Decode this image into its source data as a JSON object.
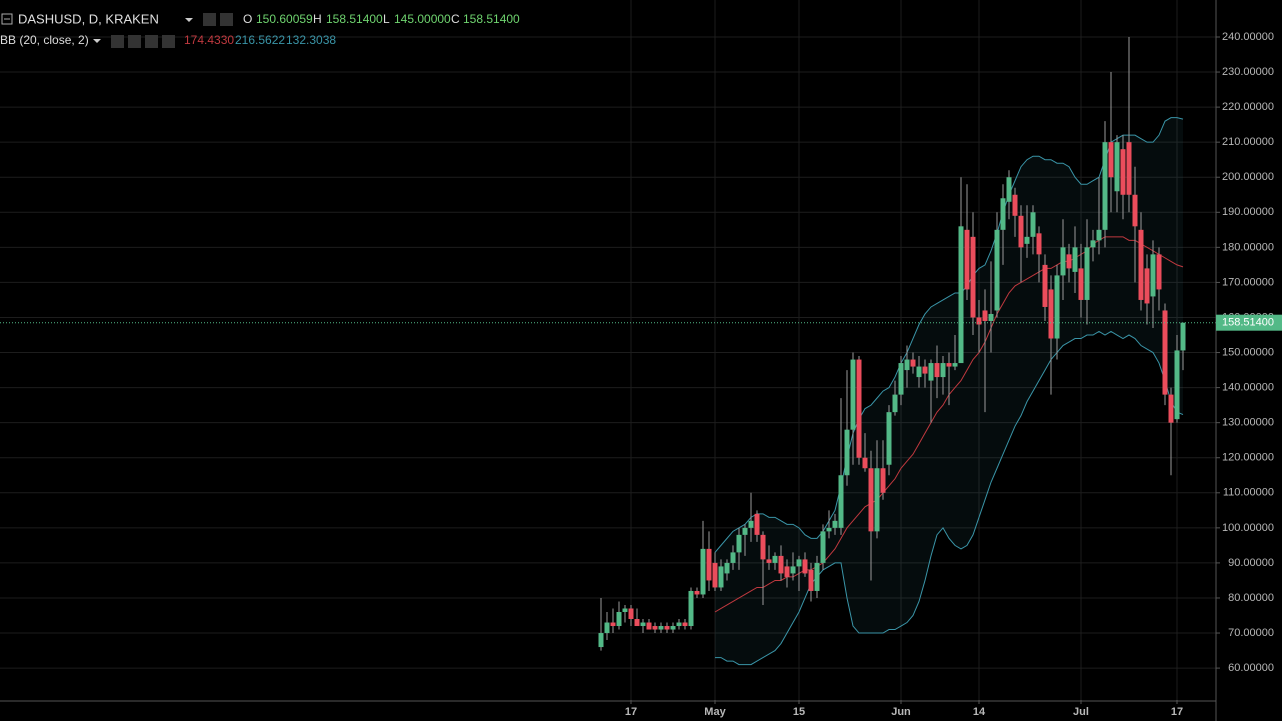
{
  "chart_data": {
    "type": "candlestick",
    "header": {
      "symbol": "DASHUSD, D, KRAKEN",
      "open_label": "O",
      "open": "150.60059",
      "high_label": "H",
      "high": "158.51400",
      "low_label": "L",
      "low": "145.00000",
      "close_label": "C",
      "close": "158.51400"
    },
    "categories": [
      null,
      null,
      null,
      null,
      null,
      "17",
      null,
      null,
      null,
      null,
      null,
      null,
      null,
      null,
      null,
      null,
      null,
      null,
      null,
      "May",
      null,
      null,
      null,
      null,
      null,
      null,
      null,
      null,
      null,
      null,
      null,
      null,
      null,
      "15",
      null,
      null,
      null,
      null,
      null,
      null,
      null,
      null,
      null,
      null,
      null,
      null,
      null,
      null,
      null,
      null,
      "Jun",
      null,
      null,
      null,
      null,
      null,
      null,
      null,
      null,
      null,
      null,
      null,
      null,
      "14",
      null,
      null,
      null,
      null,
      null,
      null,
      null,
      null,
      null,
      null,
      null,
      null,
      null,
      null,
      null,
      null,
      "Jul",
      null,
      null,
      null,
      null,
      null,
      null,
      null,
      null,
      null,
      null,
      null,
      null,
      null,
      null,
      null,
      "17",
      null
    ],
    "open": [
      66,
      70,
      73,
      72,
      76,
      77,
      74,
      72,
      73,
      72,
      71,
      72,
      71,
      72,
      73,
      72,
      82,
      81,
      94,
      90,
      83,
      87,
      90,
      93,
      98,
      100,
      104,
      98,
      91,
      90,
      92,
      89,
      87,
      89,
      91,
      88,
      82,
      90,
      99,
      100,
      100,
      115,
      128,
      148,
      120,
      117,
      99,
      117,
      118,
      133,
      138,
      145,
      148,
      143,
      146,
      142,
      147,
      143,
      147,
      146,
      147,
      185,
      183,
      160,
      162,
      159,
      162,
      185,
      193,
      195,
      189,
      181,
      183,
      184,
      175,
      168,
      154,
      172,
      178,
      173,
      174,
      165,
      180,
      182,
      185,
      210,
      196,
      208,
      210,
      195,
      185,
      174,
      166,
      178,
      162,
      138,
      131,
      150.60059
    ],
    "high": [
      80,
      76,
      77,
      79,
      78,
      78,
      77,
      74,
      74,
      73,
      73,
      73,
      73,
      74,
      74,
      83,
      83,
      102,
      99,
      93,
      91,
      91,
      95,
      100,
      101,
      110,
      105,
      99,
      95,
      93,
      95,
      91,
      93,
      92,
      93,
      90,
      92,
      101,
      105,
      104,
      137,
      145,
      150,
      149,
      127,
      122,
      125,
      125,
      135,
      142,
      149,
      152,
      150,
      149,
      148,
      148,
      152,
      149,
      150,
      155,
      200,
      198,
      190,
      165,
      168,
      176,
      190,
      198,
      202,
      197,
      192,
      192,
      192,
      186,
      178,
      172,
      175,
      188,
      181,
      186,
      181,
      188,
      185,
      200,
      216,
      230,
      212,
      212,
      240,
      203,
      190,
      178,
      182,
      180,
      164,
      140,
      155,
      158.514
    ],
    "low": [
      65,
      68,
      70,
      71,
      73,
      72,
      72,
      70,
      71,
      70,
      70,
      70,
      70,
      71,
      71,
      71,
      80,
      80,
      82,
      82,
      82,
      85,
      88,
      88,
      92,
      96,
      96,
      78,
      88,
      88,
      85,
      83,
      85,
      82,
      86,
      79,
      80,
      88,
      97,
      98,
      98,
      112,
      118,
      118,
      116,
      85,
      97,
      108,
      115,
      132,
      135,
      140,
      144,
      140,
      140,
      130,
      137,
      138,
      135,
      145,
      148,
      165,
      155,
      150,
      133,
      150,
      160,
      175,
      188,
      183,
      170,
      177,
      178,
      170,
      159,
      138,
      148,
      165,
      170,
      167,
      160,
      158,
      176,
      178,
      180,
      190,
      190,
      188,
      190,
      170,
      162,
      158,
      157,
      162,
      135,
      115,
      130,
      145
    ],
    "close": [
      70,
      73,
      72,
      76,
      77,
      74,
      72,
      73,
      71,
      71,
      72,
      71,
      72,
      73,
      72,
      82,
      81,
      94,
      85,
      83,
      89,
      90,
      93,
      98,
      100,
      102,
      98,
      91,
      90,
      92,
      87,
      86,
      89,
      91,
      87,
      82,
      90,
      99,
      100,
      102,
      115,
      128,
      148,
      120,
      117,
      99,
      117,
      110,
      133,
      138,
      147,
      148,
      146,
      146,
      144,
      147,
      143,
      147,
      146,
      147,
      186,
      168,
      160,
      158,
      159,
      161,
      185,
      194,
      200,
      189,
      180,
      183,
      190,
      178,
      163,
      154,
      172,
      180,
      174,
      180,
      165,
      180,
      182,
      185,
      210,
      200,
      210,
      195,
      195,
      186,
      165,
      164,
      178,
      168,
      138,
      130,
      150.6,
      158.514
    ],
    "up_color": "#53b987",
    "down_color": "#eb4d5c",
    "bollinger": {
      "label": "BB (20, close, 2)",
      "middle_readout": "174.4330",
      "upper_readout": "216.5622",
      "lower_readout": "132.3038",
      "middle_color": "#c0393f",
      "band_color": "#3a95a8",
      "middle": [
        null,
        null,
        null,
        null,
        null,
        null,
        null,
        null,
        null,
        null,
        null,
        null,
        null,
        null,
        null,
        null,
        null,
        null,
        null,
        76,
        77,
        78,
        79,
        80,
        81,
        82,
        83,
        83,
        84,
        85,
        85,
        86,
        86,
        87,
        88,
        88,
        89,
        90,
        92,
        94,
        97,
        100,
        102,
        104,
        106,
        107,
        108,
        110,
        112,
        114,
        117,
        119,
        121,
        124,
        127,
        130,
        133,
        135,
        138,
        140,
        142,
        145,
        148,
        150,
        153,
        157,
        161,
        164,
        167,
        169,
        170,
        171,
        172,
        173,
        174,
        174,
        175,
        176,
        176,
        177,
        178,
        179,
        181,
        182,
        183,
        183,
        183,
        183,
        182,
        182,
        181,
        180,
        179,
        178,
        177,
        176,
        175,
        174.433
      ],
      "upper": [
        null,
        null,
        null,
        null,
        null,
        null,
        null,
        null,
        null,
        null,
        null,
        null,
        null,
        null,
        null,
        null,
        null,
        null,
        null,
        93,
        95,
        97,
        99,
        100,
        101,
        103,
        104,
        104,
        103,
        103,
        102,
        101,
        101,
        100,
        98,
        97,
        97,
        99,
        102,
        105,
        112,
        120,
        127,
        131,
        134,
        135,
        137,
        139,
        140,
        143,
        147,
        150,
        154,
        158,
        161,
        163,
        164,
        165,
        166,
        167,
        167,
        169,
        172,
        174,
        175,
        179,
        184,
        190,
        195,
        199,
        203,
        205,
        206,
        206,
        205,
        205,
        204,
        204,
        203,
        200,
        198,
        198,
        199,
        200,
        205,
        210,
        211,
        212,
        212,
        212,
        211,
        210,
        210,
        212,
        216,
        217,
        217,
        216.5622
      ],
      "lower": [
        null,
        null,
        null,
        null,
        null,
        null,
        null,
        null,
        null,
        null,
        null,
        null,
        null,
        null,
        null,
        null,
        null,
        null,
        null,
        63,
        63,
        62,
        62,
        61,
        61,
        61,
        62,
        63,
        64,
        65,
        67,
        70,
        73,
        76,
        80,
        84,
        86,
        88,
        89,
        90,
        90,
        80,
        72,
        70,
        70,
        70,
        70,
        70,
        71,
        71,
        72,
        73,
        75,
        79,
        85,
        92,
        98,
        100,
        97,
        95,
        94,
        95,
        98,
        103,
        108,
        113,
        117,
        121,
        125,
        129,
        132,
        136,
        139,
        142,
        145,
        148,
        150,
        152,
        153,
        154,
        154,
        155,
        155,
        156,
        155,
        156,
        155,
        154,
        155,
        154,
        152,
        151,
        150,
        147,
        142,
        136,
        133,
        132.3038
      ]
    },
    "last_price": 158.514,
    "last_price_color": "#53b987",
    "ylim": [
      50.9,
      250.55
    ],
    "yticks": [
      {
        "value": 60,
        "label": "60.00000"
      },
      {
        "value": 70,
        "label": "70.00000"
      },
      {
        "value": 80,
        "label": "80.00000"
      },
      {
        "value": 90,
        "label": "90.00000"
      },
      {
        "value": 100,
        "label": "100.00000"
      },
      {
        "value": 110,
        "label": "110.00000"
      },
      {
        "value": 120,
        "label": "120.00000"
      },
      {
        "value": 130,
        "label": "130.00000"
      },
      {
        "value": 140,
        "label": "140.00000"
      },
      {
        "value": 150,
        "label": "150.00000"
      },
      {
        "value": 160,
        "label": "160.00000"
      },
      {
        "value": 170,
        "label": "170.00000"
      },
      {
        "value": 180,
        "label": "180.00000"
      },
      {
        "value": 190,
        "label": "190.00000"
      },
      {
        "value": 200,
        "label": "200.00000"
      },
      {
        "value": 210,
        "label": "210.00000"
      },
      {
        "value": 220,
        "label": "220.00000"
      },
      {
        "value": 230,
        "label": "230.00000"
      },
      {
        "value": 240,
        "label": "240.00000"
      }
    ],
    "grid": true
  }
}
